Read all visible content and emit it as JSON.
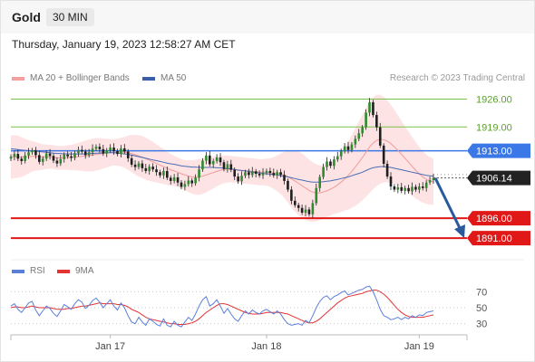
{
  "header": {
    "instrument": "Gold",
    "timeframe": "30 MIN"
  },
  "datetime": "Thursday, January 19, 2023 12:58:27 AM CET",
  "credit": "Research © 2023 Trading Central",
  "legend": [
    {
      "label": "MA 20 + Bollinger Bands",
      "color": "#f4a0a0"
    },
    {
      "label": "MA 50",
      "color": "#3a5fa8"
    }
  ],
  "rsi_legend": [
    {
      "label": "RSI",
      "color": "#5b7fd8"
    },
    {
      "label": "9MA",
      "color": "#e33333"
    }
  ],
  "colors": {
    "resistance": "#7cc04a",
    "support": "#e01818",
    "pivot": "#3b78e7",
    "candle": "#2e8b2e",
    "forecast": "#2a5a9c"
  },
  "chart_data": [
    {
      "type": "candlestick",
      "instrument": "Gold",
      "interval": "30 MIN",
      "ylim": [
        1886,
        1930
      ],
      "x_tick_labels": [
        {
          "label": "Jan 17",
          "bar": 28
        },
        {
          "label": "Jan 18",
          "bar": 72
        },
        {
          "label": "Jan 19",
          "bar": 115
        }
      ],
      "bar_count": 120,
      "last_price": 1906.14,
      "levels": [
        {
          "value": 1926.0,
          "label": "1926.00",
          "kind": "resistance"
        },
        {
          "value": 1919.0,
          "label": "1919.00",
          "kind": "resistance"
        },
        {
          "value": 1913.0,
          "label": "1913.00",
          "kind": "pivot"
        },
        {
          "value": 1896.0,
          "label": "1896.00",
          "kind": "support"
        },
        {
          "value": 1891.0,
          "label": "1891.00",
          "kind": "support"
        }
      ],
      "close": [
        1911.5,
        1912.2,
        1911.0,
        1910.4,
        1911.8,
        1912.6,
        1913.1,
        1911.9,
        1910.2,
        1911.0,
        1912.3,
        1911.7,
        1910.5,
        1909.8,
        1910.9,
        1912.0,
        1911.6,
        1911.2,
        1912.4,
        1913.2,
        1912.8,
        1911.9,
        1912.6,
        1913.5,
        1914.0,
        1913.4,
        1912.3,
        1913.1,
        1913.8,
        1912.9,
        1912.2,
        1913.6,
        1912.8,
        1911.1,
        1909.5,
        1908.9,
        1909.8,
        1908.6,
        1907.9,
        1909.0,
        1908.3,
        1907.6,
        1906.8,
        1907.9,
        1906.2,
        1905.4,
        1906.3,
        1905.0,
        1903.9,
        1904.6,
        1905.5,
        1904.8,
        1906.2,
        1908.3,
        1910.5,
        1911.8,
        1909.6,
        1910.4,
        1911.3,
        1910.1,
        1908.4,
        1909.6,
        1908.2,
        1906.5,
        1905.3,
        1906.7,
        1907.6,
        1906.9,
        1907.8,
        1907.2,
        1906.8,
        1907.5,
        1907.9,
        1907.4,
        1906.8,
        1907.6,
        1906.9,
        1905.4,
        1903.2,
        1900.4,
        1899.3,
        1898.6,
        1897.4,
        1898.2,
        1897.0,
        1899.8,
        1903.6,
        1906.4,
        1908.9,
        1910.3,
        1909.2,
        1910.8,
        1911.6,
        1912.9,
        1914.1,
        1913.2,
        1914.6,
        1916.0,
        1917.4,
        1918.9,
        1922.6,
        1925.2,
        1922.0,
        1918.9,
        1914.3,
        1909.7,
        1906.5,
        1904.0,
        1903.2,
        1903.8,
        1902.9,
        1903.6,
        1902.8,
        1903.9,
        1903.2,
        1904.0,
        1903.6,
        1905.0,
        1905.6,
        1906.14
      ],
      "ma20": [
        1911.4,
        1911.5,
        1911.5,
        1911.4,
        1911.4,
        1911.5,
        1911.6,
        1911.6,
        1911.5,
        1911.4,
        1911.5,
        1911.5,
        1911.4,
        1911.2,
        1911.2,
        1911.2,
        1911.3,
        1911.3,
        1911.4,
        1911.5,
        1911.6,
        1911.7,
        1911.8,
        1911.9,
        1912.1,
        1912.2,
        1912.3,
        1912.4,
        1912.5,
        1912.6,
        1912.6,
        1912.7,
        1912.6,
        1912.5,
        1912.3,
        1912.0,
        1911.7,
        1911.4,
        1911.0,
        1910.6,
        1910.2,
        1909.8,
        1909.4,
        1909.0,
        1908.6,
        1908.2,
        1907.9,
        1907.6,
        1907.2,
        1906.9,
        1906.6,
        1906.4,
        1906.3,
        1906.4,
        1906.6,
        1906.9,
        1907.2,
        1907.5,
        1907.8,
        1908.1,
        1908.3,
        1908.4,
        1908.4,
        1908.3,
        1908.2,
        1908.1,
        1908.0,
        1907.9,
        1907.8,
        1907.7,
        1907.6,
        1907.6,
        1907.6,
        1907.5,
        1907.4,
        1907.3,
        1907.2,
        1906.9,
        1906.5,
        1905.9,
        1905.4,
        1904.8,
        1904.2,
        1903.6,
        1903.0,
        1902.6,
        1902.4,
        1902.4,
        1902.6,
        1902.9,
        1903.3,
        1903.8,
        1904.4,
        1905.1,
        1905.9,
        1906.8,
        1907.8,
        1908.9,
        1910.1,
        1911.3,
        1912.6,
        1913.9,
        1914.9,
        1915.6,
        1915.9,
        1915.8,
        1915.4,
        1914.8,
        1914.0,
        1913.1,
        1912.1,
        1911.1,
        1910.1,
        1909.1,
        1908.1,
        1907.2,
        1906.4,
        1905.8,
        1905.4,
        1905.2
      ],
      "ma50": [
        1913.5,
        1913.4,
        1913.3,
        1913.2,
        1913.1,
        1913.0,
        1912.9,
        1912.9,
        1912.8,
        1912.7,
        1912.6,
        1912.5,
        1912.4,
        1912.3,
        1912.3,
        1912.2,
        1912.2,
        1912.2,
        1912.2,
        1912.2,
        1912.2,
        1912.2,
        1912.3,
        1912.3,
        1912.4,
        1912.4,
        1912.5,
        1912.5,
        1912.5,
        1912.5,
        1912.4,
        1912.3,
        1912.2,
        1912.1,
        1911.9,
        1911.7,
        1911.5,
        1911.3,
        1911.1,
        1910.9,
        1910.7,
        1910.5,
        1910.3,
        1910.1,
        1909.9,
        1909.7,
        1909.6,
        1909.4,
        1909.2,
        1909.1,
        1909.0,
        1908.9,
        1908.9,
        1908.8,
        1908.8,
        1908.8,
        1908.8,
        1908.8,
        1908.7,
        1908.7,
        1908.6,
        1908.5,
        1908.4,
        1908.3,
        1908.1,
        1908.0,
        1907.9,
        1907.8,
        1907.6,
        1907.5,
        1907.4,
        1907.3,
        1907.2,
        1907.1,
        1907.0,
        1906.9,
        1906.7,
        1906.6,
        1906.4,
        1906.2,
        1906.0,
        1905.8,
        1905.6,
        1905.4,
        1905.2,
        1905.1,
        1905.1,
        1905.1,
        1905.2,
        1905.3,
        1905.4,
        1905.6,
        1905.8,
        1906.0,
        1906.2,
        1906.4,
        1906.7,
        1907.0,
        1907.3,
        1907.6,
        1908.0,
        1908.4,
        1908.7,
        1908.9,
        1909.0,
        1909.0,
        1908.9,
        1908.8,
        1908.6,
        1908.4,
        1908.2,
        1908.0,
        1907.8,
        1907.6,
        1907.4,
        1907.2,
        1907.0,
        1906.8,
        1906.7,
        1906.6
      ],
      "bb_width": [
        5.5,
        5.4,
        5.3,
        5.0,
        4.6,
        4.2,
        3.8,
        3.6,
        3.4,
        3.2,
        3.1,
        3.0,
        3.0,
        3.0,
        3.0,
        3.0,
        3.1,
        3.2,
        3.3,
        3.5,
        3.7,
        3.9,
        4.0,
        4.1,
        4.1,
        4.0,
        3.8,
        3.6,
        3.4,
        3.3,
        3.4,
        3.6,
        3.9,
        4.3,
        4.7,
        5.0,
        5.2,
        5.3,
        5.3,
        5.2,
        5.0,
        4.8,
        4.6,
        4.4,
        4.2,
        4.0,
        3.8,
        3.7,
        3.7,
        3.8,
        4.0,
        4.2,
        4.4,
        4.5,
        4.5,
        4.4,
        4.2,
        4.0,
        3.8,
        3.6,
        3.5,
        3.4,
        3.3,
        3.3,
        3.3,
        3.3,
        3.3,
        3.3,
        3.3,
        3.3,
        3.3,
        3.3,
        3.4,
        3.6,
        4.0,
        4.5,
        5.1,
        5.8,
        6.5,
        7.2,
        7.7,
        8.0,
        8.1,
        8.0,
        7.8,
        7.5,
        7.2,
        6.9,
        6.7,
        6.6,
        6.6,
        6.8,
        7.1,
        7.5,
        8.0,
        8.6,
        9.2,
        9.8,
        10.3,
        10.8,
        11.2,
        11.5,
        11.6,
        11.5,
        11.2,
        10.8,
        10.3,
        9.8,
        9.3,
        8.8,
        8.4,
        8.0,
        7.7,
        7.4,
        7.1,
        6.8,
        6.5,
        6.2,
        6.0,
        5.8
      ],
      "forecast": {
        "from": 1906.14,
        "to": 1891.0
      }
    },
    {
      "type": "line",
      "name": "RSI",
      "ylim": [
        25,
        75
      ],
      "y_tick_labels": [
        "70",
        "50",
        "30"
      ],
      "series": [
        {
          "name": "RSI",
          "values": [
            52,
            55,
            48,
            44,
            50,
            56,
            58,
            47,
            40,
            46,
            52,
            49,
            43,
            39,
            46,
            54,
            51,
            48,
            55,
            60,
            57,
            49,
            53,
            59,
            62,
            57,
            50,
            55,
            60,
            52,
            47,
            56,
            50,
            40,
            32,
            30,
            38,
            32,
            28,
            36,
            33,
            29,
            27,
            36,
            28,
            26,
            33,
            28,
            26,
            32,
            38,
            34,
            42,
            52,
            60,
            64,
            52,
            55,
            60,
            52,
            43,
            49,
            42,
            36,
            33,
            40,
            46,
            42,
            47,
            44,
            42,
            46,
            48,
            45,
            42,
            46,
            42,
            35,
            30,
            28,
            29,
            30,
            28,
            34,
            31,
            40,
            50,
            58,
            63,
            65,
            60,
            64,
            66,
            69,
            71,
            66,
            68,
            70,
            72,
            73,
            76,
            77,
            70,
            60,
            48,
            40,
            38,
            35,
            36,
            38,
            35,
            38,
            36,
            40,
            38,
            41,
            40,
            44,
            45,
            46
          ]
        },
        {
          "name": "9MA",
          "values": [
            50,
            51,
            51,
            50,
            50,
            51,
            52,
            51,
            50,
            50,
            50,
            50,
            49,
            48,
            48,
            48,
            49,
            49,
            50,
            51,
            52,
            52,
            53,
            54,
            55,
            56,
            55,
            55,
            55,
            55,
            54,
            54,
            53,
            51,
            48,
            46,
            44,
            41,
            38,
            36,
            35,
            34,
            33,
            32,
            31,
            30,
            30,
            29,
            29,
            29,
            30,
            31,
            33,
            36,
            40,
            44,
            47,
            50,
            53,
            55,
            55,
            54,
            52,
            50,
            48,
            46,
            44,
            43,
            42,
            42,
            42,
            43,
            44,
            44,
            44,
            44,
            44,
            43,
            42,
            40,
            38,
            36,
            34,
            32,
            31,
            31,
            33,
            36,
            40,
            44,
            48,
            52,
            56,
            59,
            62,
            64,
            65,
            66,
            67,
            68,
            70,
            71,
            72,
            72,
            70,
            67,
            63,
            58,
            53,
            48,
            44,
            41,
            39,
            38,
            38,
            38,
            38,
            39,
            40,
            41
          ]
        }
      ]
    }
  ]
}
